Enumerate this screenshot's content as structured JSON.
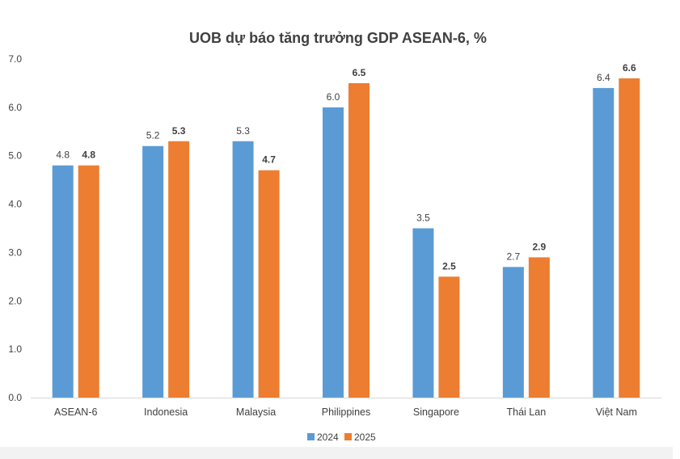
{
  "chart_data": {
    "type": "bar",
    "title": "UOB dự báo tăng trưởng GDP ASEAN-6, %",
    "categories": [
      "ASEAN-6",
      "Indonesia",
      "Malaysia",
      "Philippines",
      "Singapore",
      "Thái Lan",
      "Việt Nam"
    ],
    "series": [
      {
        "name": "2024",
        "values": [
          4.8,
          5.2,
          5.3,
          6.0,
          3.5,
          2.7,
          6.4
        ],
        "color": "#5b9bd5",
        "labels_bold": false
      },
      {
        "name": "2025",
        "values": [
          4.8,
          5.3,
          4.7,
          6.5,
          2.5,
          2.9,
          6.6
        ],
        "color": "#ed7d31",
        "labels_bold": true
      }
    ],
    "ylim": [
      0,
      7
    ],
    "yticks": [
      "0.0",
      "1.0",
      "2.0",
      "3.0",
      "4.0",
      "5.0",
      "6.0",
      "7.0"
    ],
    "xlabel": "",
    "ylabel": "",
    "grid": false,
    "legend": "bottom"
  }
}
